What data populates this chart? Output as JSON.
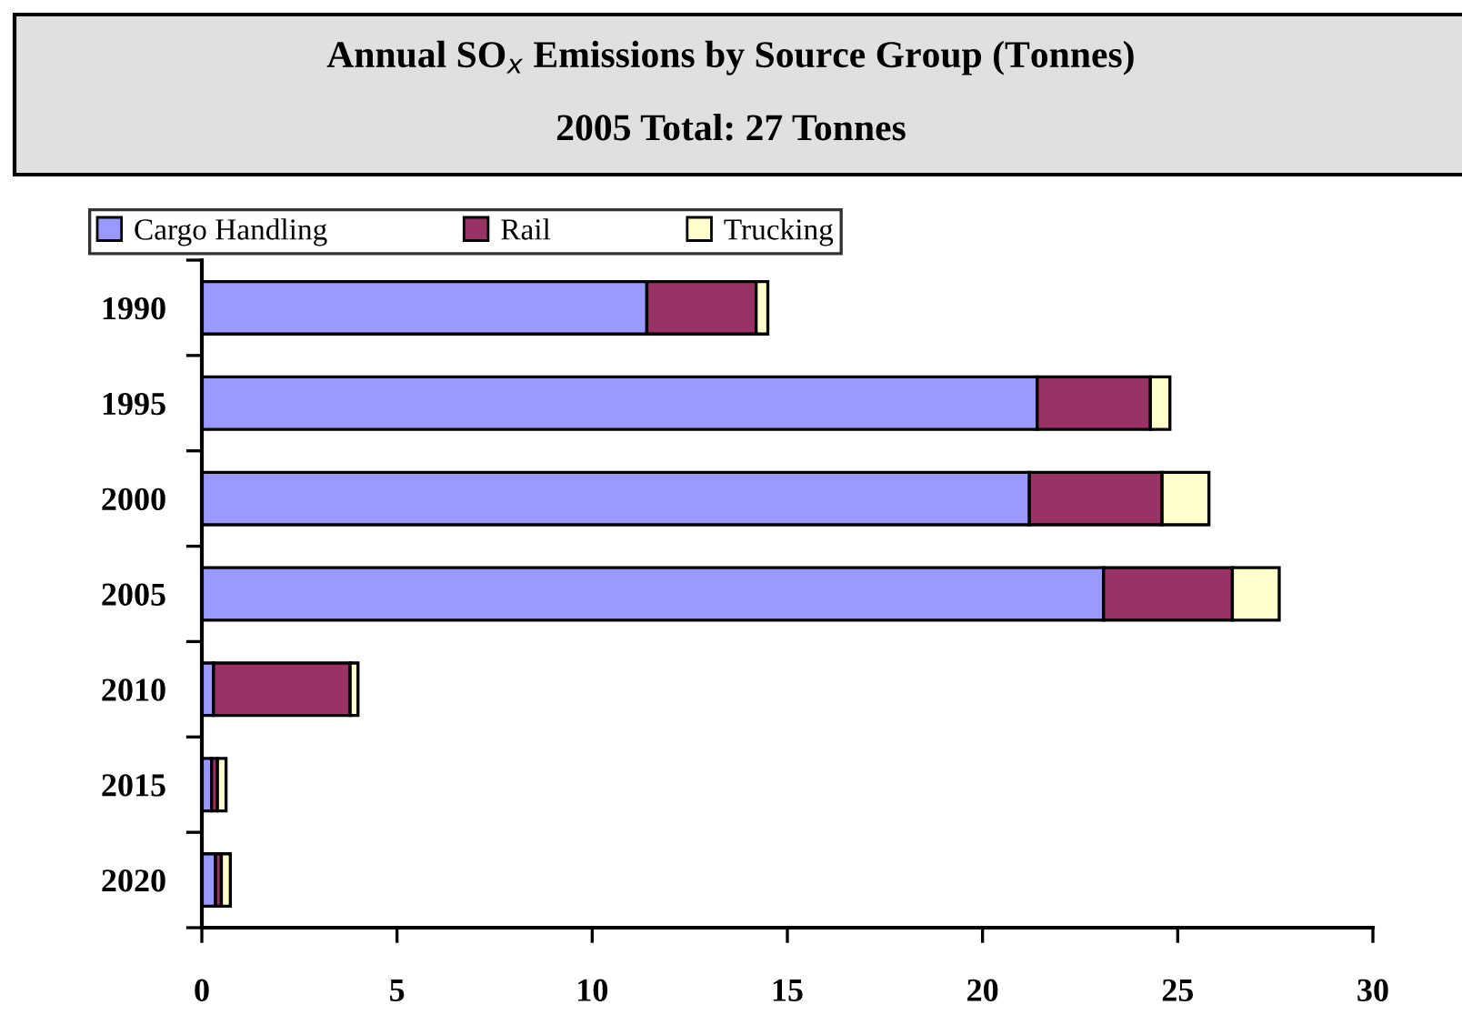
{
  "chart_data": {
    "type": "bar",
    "orientation": "horizontal",
    "stacked": true,
    "title": "Annual SO$_{x}$ Emissions by Source Group (Tonnes)",
    "subtitle": "2005 Total: 27 Tonnes",
    "categories": [
      "1990",
      "1995",
      "2000",
      "2005",
      "2010",
      "2015",
      "2020"
    ],
    "series": [
      {
        "name": "Cargo Handling",
        "color": "#9999ff",
        "values": [
          11.4,
          21.4,
          21.2,
          23.1,
          0.3,
          0.25,
          0.35
        ]
      },
      {
        "name": "Rail",
        "color": "#993366",
        "values": [
          2.8,
          2.9,
          3.4,
          3.3,
          3.5,
          0.15,
          0.15
        ]
      },
      {
        "name": "Trucking",
        "color": "#ffffcc",
        "values": [
          0.3,
          0.5,
          1.2,
          1.2,
          0.2,
          0.22,
          0.23
        ]
      }
    ],
    "xlim": [
      0,
      30
    ],
    "xticks": [
      0,
      5,
      10,
      15,
      20,
      25,
      30
    ],
    "grid": false,
    "legend": "top left"
  }
}
